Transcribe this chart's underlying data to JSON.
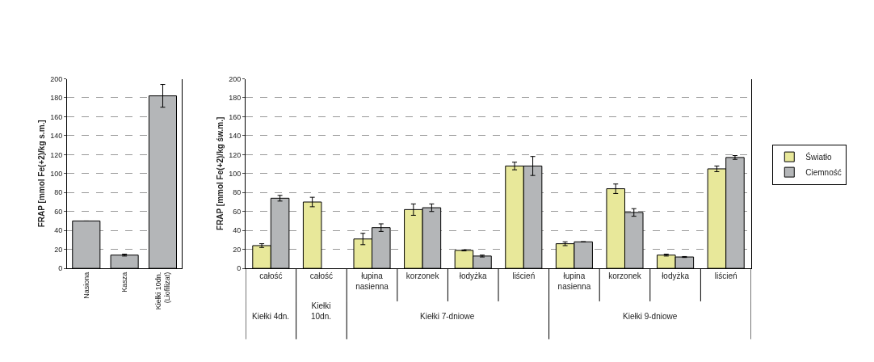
{
  "chart_data": [
    {
      "type": "bar",
      "ylabel": "FRAP [mmol Fe(+2)/kg s.m.]",
      "categories": [
        "Nasiona",
        "Kasza",
        "Kiełki 10dn.\n(Liofilizat)"
      ],
      "series": [
        {
          "color": "#b4b6b8",
          "values": [
            50,
            14,
            182
          ],
          "errors": [
            null,
            1,
            12
          ]
        }
      ],
      "ylim": [
        0,
        200
      ],
      "yticks": [
        0,
        20,
        40,
        60,
        80,
        100,
        120,
        140,
        160,
        180,
        200
      ],
      "grid": "y",
      "legend": false
    },
    {
      "type": "bar",
      "ylabel": "FRAP [mmol Fe(+2)/kg św.m.]",
      "categories": [
        "całość",
        "całość",
        "łupina\nnasienna",
        "korzonek",
        "łodyżka",
        "liścień",
        "łupina\nnasienna",
        "korzonek",
        "łodyżka",
        "liścień"
      ],
      "series": [
        {
          "name": "Światło",
          "color": "#e8e89a",
          "values": [
            24,
            70,
            31,
            62,
            19,
            108,
            26,
            84,
            14,
            105
          ],
          "errors": [
            2,
            5,
            6,
            6,
            0.5,
            4,
            2,
            5,
            1,
            3
          ]
        },
        {
          "name": "Ciemność",
          "color": "#b4b6b8",
          "values": [
            74,
            null,
            43,
            64,
            13,
            108,
            28,
            59,
            12,
            117
          ],
          "errors": [
            3,
            null,
            4,
            4,
            1,
            10,
            null,
            4,
            0.5,
            2
          ]
        }
      ],
      "annotations": [
        "Kiełki 4dn.",
        "Kiełki\n10dn.",
        "Kiełki 7-dniowe",
        "Kiełki 9-dniowe"
      ],
      "ylim": [
        0,
        200
      ],
      "yticks": [
        0,
        20,
        40,
        60,
        80,
        100,
        120,
        140,
        160,
        180,
        200
      ],
      "grid": "y",
      "legend": "right"
    }
  ]
}
